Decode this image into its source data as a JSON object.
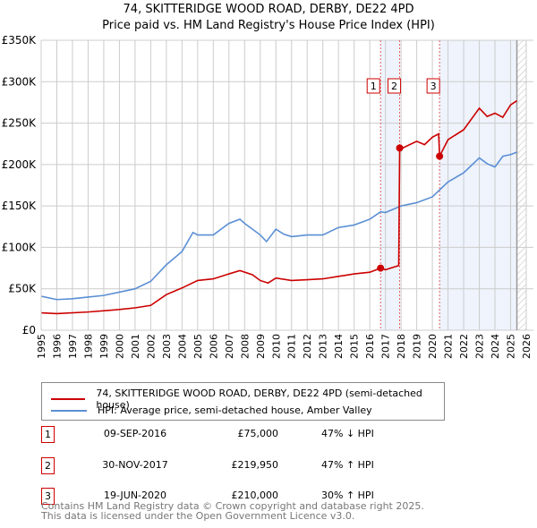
{
  "title": "74, SKITTERIDGE WOOD ROAD, DERBY, DE22 4PD",
  "subtitle": "Price paid vs. HM Land Registry's House Price Index (HPI)",
  "chart_data": {
    "type": "line",
    "ylim": [
      0,
      350000
    ],
    "xlim": [
      1995,
      2026
    ],
    "yticks": [
      0,
      50000,
      100000,
      150000,
      200000,
      250000,
      300000,
      350000
    ],
    "ytick_labels": [
      "£0",
      "£50K",
      "£100K",
      "£150K",
      "£200K",
      "£250K",
      "£300K",
      "£350K"
    ],
    "xticks": [
      "1995",
      "1996",
      "1997",
      "1998",
      "1999",
      "2000",
      "2001",
      "2002",
      "2003",
      "2004",
      "2005",
      "2006",
      "2007",
      "2008",
      "2009",
      "2010",
      "2011",
      "2012",
      "2013",
      "2014",
      "2015",
      "2016",
      "2017",
      "2018",
      "2019",
      "2020",
      "2021",
      "2022",
      "2023",
      "2024",
      "2025",
      "2026"
    ],
    "grid": true,
    "series": [
      {
        "name": "74, SKITTERIDGE WOOD ROAD, DERBY, DE22 4PD (semi-detached house)",
        "color": "#cc0000",
        "x": [
          1995,
          1996,
          1998,
          2000,
          2001,
          2002,
          2003,
          2004,
          2005,
          2006,
          2007,
          2007.7,
          2008.5,
          2009,
          2009.5,
          2010,
          2011,
          2012,
          2013,
          2014,
          2015,
          2016,
          2016.69,
          2017,
          2017.85,
          2017.91,
          2018,
          2019,
          2019.5,
          2020,
          2020.4,
          2020.46,
          2021,
          2022,
          2023,
          2023.5,
          2024,
          2024.5,
          2025,
          2025.4
        ],
        "y": [
          21000,
          20000,
          22000,
          25000,
          27000,
          30000,
          43000,
          51000,
          60000,
          62000,
          68000,
          72000,
          67000,
          60000,
          57000,
          63000,
          60000,
          61000,
          62000,
          65000,
          68000,
          70000,
          75000,
          73000,
          78000,
          219950,
          219000,
          228000,
          224000,
          233000,
          237000,
          210000,
          230000,
          242000,
          268000,
          258000,
          262000,
          257000,
          272000,
          277000
        ]
      },
      {
        "name": "HPI: Average price, semi-detached house, Amber Valley",
        "color": "#5b8fd4",
        "x": [
          1995,
          1996,
          1997,
          1998,
          1999,
          2000,
          2001,
          2002,
          2003,
          2004,
          2004.7,
          2005,
          2006,
          2007,
          2007.7,
          2008,
          2009,
          2009.4,
          2010,
          2010.5,
          2011,
          2012,
          2013,
          2014,
          2015,
          2016,
          2016.7,
          2017,
          2018,
          2019,
          2020,
          2021,
          2022,
          2023,
          2023.5,
          2024,
          2024.5,
          2025,
          2025.4
        ],
        "y": [
          41000,
          37000,
          38000,
          40000,
          42000,
          46000,
          50000,
          59000,
          79000,
          95000,
          118000,
          115000,
          115000,
          129000,
          134000,
          129000,
          115000,
          107000,
          122000,
          116000,
          113000,
          115000,
          115000,
          124000,
          127000,
          134000,
          143000,
          142000,
          150000,
          154000,
          161000,
          179000,
          190000,
          208000,
          201000,
          197000,
          210000,
          212000,
          215000
        ]
      }
    ],
    "sales": [
      {
        "label": "1",
        "x": 2016.69,
        "y": 75000
      },
      {
        "label": "2",
        "x": 2017.91,
        "y": 219950
      },
      {
        "label": "3",
        "x": 2020.46,
        "y": 210000
      }
    ],
    "shaded": [
      [
        2016.69,
        2017.91
      ],
      [
        2020.46,
        2025.4
      ]
    ],
    "hatched_from": 2025.4
  },
  "legend": {
    "red": "74, SKITTERIDGE WOOD ROAD, DERBY, DE22 4PD (semi-detached house)",
    "blue": "HPI: Average price, semi-detached house, Amber Valley"
  },
  "transactions": [
    {
      "num": "1",
      "date": "09-SEP-2016",
      "price": "£75,000",
      "hpi": "47% ↓ HPI"
    },
    {
      "num": "2",
      "date": "30-NOV-2017",
      "price": "£219,950",
      "hpi": "47% ↑ HPI"
    },
    {
      "num": "3",
      "date": "19-JUN-2020",
      "price": "£210,000",
      "hpi": "30% ↑ HPI"
    }
  ],
  "footer": [
    "Contains HM Land Registry data © Crown copyright and database right 2025.",
    "This data is licensed under the Open Government Licence v3.0."
  ]
}
